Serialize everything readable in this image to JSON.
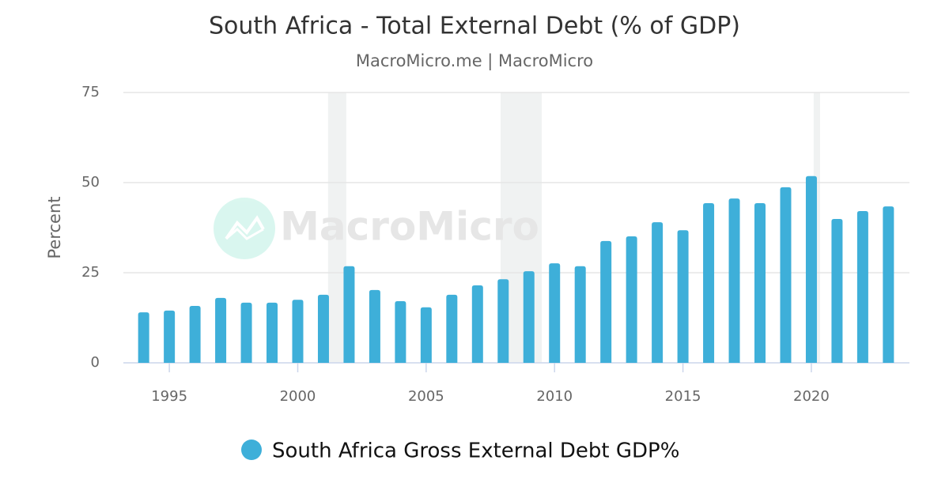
{
  "chart_data": {
    "type": "bar",
    "title": "South Africa - Total External Debt (% of GDP)",
    "subtitle": "MacroMicro.me | MacroMicro",
    "watermark": "MacroMicro",
    "y_label": "Percent",
    "x": [
      1994,
      1995,
      1996,
      1997,
      1998,
      1999,
      2000,
      2001,
      2002,
      2003,
      2004,
      2005,
      2006,
      2007,
      2008,
      2009,
      2010,
      2011,
      2012,
      2013,
      2014,
      2015,
      2016,
      2017,
      2018,
      2019,
      2020,
      2021,
      2022,
      2023
    ],
    "series": [
      {
        "name": "South Africa Gross External Debt GDP%",
        "color": "#3eafd9",
        "values": [
          14.0,
          14.5,
          15.8,
          18.0,
          16.7,
          16.7,
          17.5,
          18.9,
          26.8,
          20.2,
          17.1,
          15.4,
          18.9,
          21.5,
          23.2,
          25.4,
          27.6,
          26.8,
          33.8,
          35.1,
          39.0,
          36.8,
          44.3,
          45.6,
          44.3,
          48.7,
          51.8,
          39.9,
          42.1,
          43.4
        ]
      }
    ],
    "shaded_ranges": [
      [
        2001.18,
        2001.89
      ],
      [
        2007.9,
        2009.5
      ],
      [
        2020.09,
        2020.34
      ]
    ],
    "xlim": [
      1993.21,
      2023.82
    ],
    "xticks": [
      1995,
      2000,
      2005,
      2010,
      2015,
      2020
    ],
    "ylim": [
      0,
      75
    ],
    "yticks": [
      0,
      25,
      50,
      75
    ],
    "grid": true
  }
}
